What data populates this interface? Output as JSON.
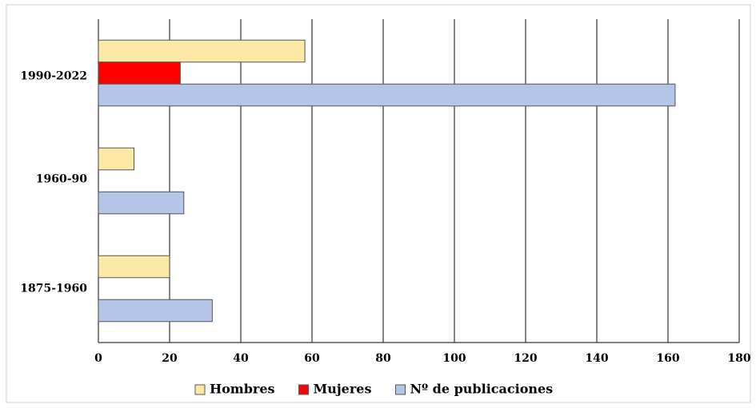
{
  "chart_data": {
    "type": "barh",
    "categories": [
      "1990-2022",
      "1960-90",
      "1875-1960"
    ],
    "series": [
      {
        "name": "Hombres",
        "color": "#fde9a6",
        "values": [
          58,
          10,
          20
        ]
      },
      {
        "name": "Mujeres",
        "color": "#ff0000",
        "values": [
          23,
          null,
          null
        ]
      },
      {
        "name": "Nº de publicaciones",
        "color": "#b4c6e7",
        "values": [
          162,
          24,
          32
        ]
      }
    ],
    "xlim": [
      0,
      180
    ],
    "xticks": [
      0,
      20,
      40,
      60,
      80,
      100,
      120,
      140,
      160,
      180
    ],
    "grid": true,
    "legend": "bottom"
  }
}
